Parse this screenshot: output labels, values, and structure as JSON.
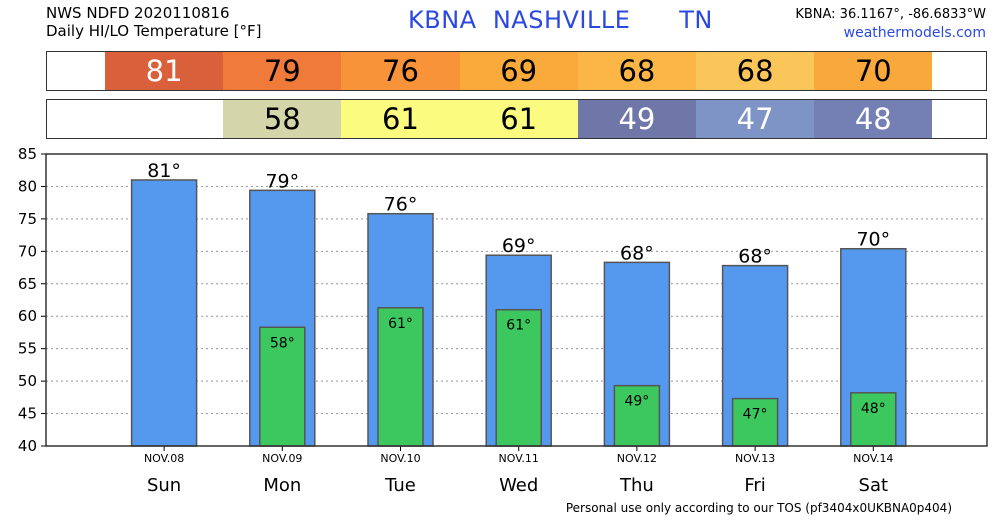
{
  "header": {
    "line1": "NWS NDFD 2020110816",
    "line2": "Daily HI/LO Temperature [°F]",
    "station": "KBNA",
    "city": "NASHVILLE",
    "state": "TN",
    "coords": "KBNA: 36.1167°, -86.6833°W",
    "site": "weathermodels.com"
  },
  "footer": "Personal use only according to our TOS (pf3404x0UKBNA0p404)",
  "hi_strip": [
    {
      "text": "81",
      "color": "#d9603b"
    },
    {
      "text": "79",
      "color": "#ef7a3a"
    },
    {
      "text": "76",
      "color": "#f89339"
    },
    {
      "text": "69",
      "color": "#f9aa3b"
    },
    {
      "text": "68",
      "color": "#fbb645"
    },
    {
      "text": "68",
      "color": "#fbc659"
    },
    {
      "text": "70",
      "color": "#f9a93b"
    }
  ],
  "lo_strip": [
    {
      "text": "",
      "color": "#ffffff"
    },
    {
      "text": "58",
      "color": "#d5d5aa"
    },
    {
      "text": "61",
      "color": "#fbfb80"
    },
    {
      "text": "61",
      "color": "#fbfb80"
    },
    {
      "text": "49",
      "color": "#6f76a8"
    },
    {
      "text": "47",
      "color": "#7f94c6"
    },
    {
      "text": "48",
      "color": "#7480b3"
    }
  ],
  "chart_data": {
    "type": "bar",
    "categories": [
      "Sun",
      "Mon",
      "Tue",
      "Wed",
      "Thu",
      "Fri",
      "Sat"
    ],
    "dates": [
      "NOV.08",
      "NOV.09",
      "NOV.10",
      "NOV.11",
      "NOV.12",
      "NOV.13",
      "NOV.14"
    ],
    "series": [
      {
        "values": [
          81,
          79.4,
          75.8,
          69.4,
          68.3,
          67.8,
          70.4
        ],
        "labels": [
          "81°",
          "79°",
          "76°",
          "69°",
          "68°",
          "68°",
          "70°"
        ],
        "color": "#5599ee"
      },
      {
        "values": [
          null,
          58.3,
          61.3,
          61,
          49.3,
          47.3,
          48.2
        ],
        "labels": [
          "",
          "58°",
          "61°",
          "61°",
          "49°",
          "47°",
          "48°"
        ],
        "color": "#3cc85f"
      }
    ],
    "ylim": [
      40,
      85
    ],
    "yticks": [
      40,
      45,
      50,
      55,
      60,
      65,
      70,
      75,
      80,
      85
    ],
    "grid": true
  }
}
